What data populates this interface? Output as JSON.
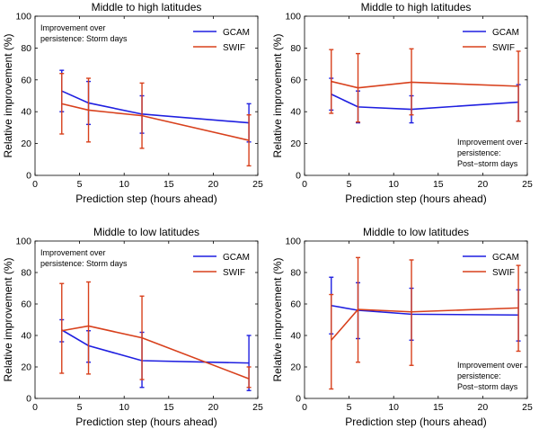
{
  "colors": {
    "GCAM": "#1f1fe0",
    "SWIF": "#d8401c"
  },
  "chart_data": [
    {
      "type": "line",
      "title": "Middle to high latitudes",
      "xlabel": "Prediction step (hours ahead)",
      "ylabel": "Relative improvement (%)",
      "xlim": [
        0,
        25
      ],
      "ylim": [
        0,
        100
      ],
      "xticks": [
        "0",
        "5",
        "10",
        "15",
        "20",
        "25"
      ],
      "yticks": [
        "0",
        "20",
        "40",
        "60",
        "80",
        "100"
      ],
      "annotation": [
        "Improvement over",
        "persistence: Storm days"
      ],
      "annotation_position": "top-left",
      "legend_position": "top-right",
      "x": [
        3,
        6,
        12,
        24
      ],
      "series": [
        {
          "name": "GCAM",
          "values": [
            53,
            45.5,
            38.5,
            33
          ],
          "low": [
            40,
            32,
            26.5,
            21
          ],
          "high": [
            66,
            59,
            50,
            45
          ]
        },
        {
          "name": "SWIF",
          "values": [
            45,
            41,
            37.5,
            22
          ],
          "low": [
            26,
            21,
            17,
            6
          ],
          "high": [
            64,
            61,
            58,
            38
          ]
        }
      ]
    },
    {
      "type": "line",
      "title": "Middle to high latitudes",
      "xlabel": "Prediction step (hours ahead)",
      "ylabel": "Relative improvement (%)",
      "xlim": [
        0,
        25
      ],
      "ylim": [
        0,
        100
      ],
      "xticks": [
        "0",
        "5",
        "10",
        "15",
        "20",
        "25"
      ],
      "yticks": [
        "0",
        "20",
        "40",
        "60",
        "80",
        "100"
      ],
      "annotation": [
        "Improvement over",
        "persistence:",
        "Post−storm days"
      ],
      "annotation_position": "bottom-right",
      "legend_position": "top-right",
      "x": [
        3,
        6,
        12,
        24
      ],
      "series": [
        {
          "name": "GCAM",
          "values": [
            51,
            43,
            41.5,
            46
          ],
          "low": [
            41,
            33,
            33,
            34
          ],
          "high": [
            61,
            53,
            50,
            57
          ]
        },
        {
          "name": "SWIF",
          "values": [
            59,
            55,
            58.5,
            56
          ],
          "low": [
            39,
            33.5,
            38,
            34
          ],
          "high": [
            79,
            76.5,
            79.5,
            78
          ]
        }
      ]
    },
    {
      "type": "line",
      "title": "Middle to low latitudes",
      "xlabel": "Prediction step (hours ahead)",
      "ylabel": "Relative improvement (%)",
      "xlim": [
        0,
        25
      ],
      "ylim": [
        0,
        100
      ],
      "xticks": [
        "0",
        "5",
        "10",
        "15",
        "20",
        "25"
      ],
      "yticks": [
        "0",
        "20",
        "40",
        "60",
        "80",
        "100"
      ],
      "annotation": [
        "Improvement over",
        "persistence: Storm days"
      ],
      "annotation_position": "top-left",
      "legend_position": "top-right",
      "x": [
        3,
        6,
        12,
        24
      ],
      "series": [
        {
          "name": "GCAM",
          "values": [
            43.5,
            33.5,
            24,
            22.5
          ],
          "low": [
            36,
            23,
            7,
            5
          ],
          "high": [
            50,
            43,
            42,
            40
          ]
        },
        {
          "name": "SWIF",
          "values": [
            43,
            46,
            38.5,
            12.5
          ],
          "low": [
            16,
            15.5,
            12,
            7
          ],
          "high": [
            73,
            74,
            65,
            20
          ]
        }
      ]
    },
    {
      "type": "line",
      "title": "Middle to low latitudes",
      "xlabel": "Prediction step (hours ahead)",
      "ylabel": "Relative improvement (%)",
      "xlim": [
        0,
        25
      ],
      "ylim": [
        0,
        100
      ],
      "xticks": [
        "0",
        "5",
        "10",
        "15",
        "20",
        "25"
      ],
      "yticks": [
        "0",
        "20",
        "40",
        "60",
        "80",
        "100"
      ],
      "annotation": [
        "Improvement over",
        "persistence:",
        "Post−storm days"
      ],
      "annotation_position": "bottom-right",
      "legend_position": "top-right",
      "x": [
        3,
        6,
        12,
        24
      ],
      "series": [
        {
          "name": "GCAM",
          "values": [
            59,
            56,
            53.5,
            53
          ],
          "low": [
            41,
            38,
            37,
            36.5
          ],
          "high": [
            77,
            73.5,
            70,
            69
          ]
        },
        {
          "name": "SWIF",
          "values": [
            37,
            56.5,
            55,
            57.5
          ],
          "low": [
            6,
            23,
            21,
            30
          ],
          "high": [
            66,
            89.5,
            88,
            84.5
          ]
        }
      ]
    }
  ]
}
